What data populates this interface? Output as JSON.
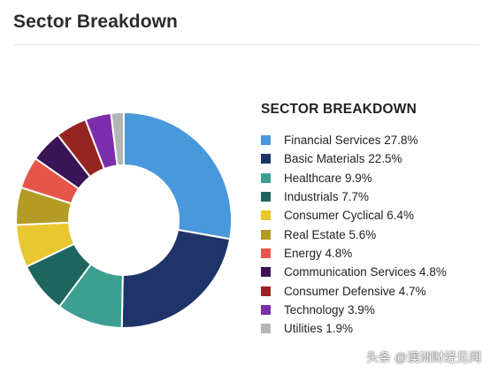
{
  "header": {
    "title": "Sector Breakdown"
  },
  "legend_title": "SECTOR BREAKDOWN",
  "watermark": "头条 @澳洲财经见闻",
  "chart_data": {
    "type": "pie",
    "style": "donut",
    "title": "SECTOR BREAKDOWN",
    "legend_position": "right",
    "categories": [
      "Financial Services",
      "Basic Materials",
      "Healthcare",
      "Industrials",
      "Consumer Cyclical",
      "Real Estate",
      "Energy",
      "Communication Services",
      "Consumer Defensive",
      "Technology",
      "Utilities"
    ],
    "values": [
      27.8,
      22.5,
      9.9,
      7.7,
      6.4,
      5.6,
      4.8,
      4.8,
      4.7,
      3.9,
      1.9
    ],
    "labels": [
      "Financial Services 27.8%",
      "Basic Materials 22.5%",
      "Healthcare 9.9%",
      "Industrials 7.7%",
      "Consumer Cyclical 6.4%",
      "Real Estate 5.6%",
      "Energy 4.8%",
      "Communication Services 4.8%",
      "Consumer Defensive 4.7%",
      "Technology 3.9%",
      "Utilities 1.9%"
    ],
    "colors": [
      "#4a98dc",
      "#1f3468",
      "#3c9f92",
      "#1e6560",
      "#e8c730",
      "#b39b26",
      "#e7554a",
      "#3a1456",
      "#962521",
      "#7b2dab",
      "#b5b5b5"
    ]
  }
}
